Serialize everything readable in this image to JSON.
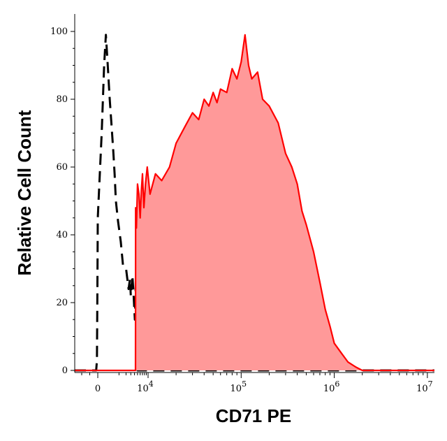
{
  "chart_data": {
    "type": "area",
    "title": "",
    "xlabel": "CD71 PE",
    "ylabel": "Relative Cell Count",
    "x_scale": "biexponential",
    "xlim": [
      -3000,
      15000000
    ],
    "ylim": [
      0,
      100
    ],
    "y_ticks": [
      0,
      20,
      40,
      60,
      80,
      100
    ],
    "y_tick_labels": [
      "0",
      "20",
      "40",
      "60",
      "80",
      "100"
    ],
    "x_ticks": [
      {
        "value": 0,
        "label": "0",
        "exp": ""
      },
      {
        "value": 10000,
        "label": "10",
        "exp": "4"
      },
      {
        "value": 100000,
        "label": "10",
        "exp": "5"
      },
      {
        "value": 1000000,
        "label": "10",
        "exp": "6"
      },
      {
        "value": 10000000,
        "label": "10",
        "exp": "7"
      }
    ],
    "grid": false,
    "legend": "none",
    "series": [
      {
        "style": "dashed",
        "color": "#000000",
        "fill": "none",
        "points": [
          [
            -3000,
            0
          ],
          [
            -200,
            0
          ],
          [
            -100,
            3
          ],
          [
            -50,
            22
          ],
          [
            0,
            45
          ],
          [
            50,
            70
          ],
          [
            100,
            90
          ],
          [
            150,
            99
          ],
          [
            200,
            92
          ],
          [
            300,
            80
          ],
          [
            400,
            72
          ],
          [
            500,
            65
          ],
          [
            600,
            58
          ],
          [
            700,
            50
          ],
          [
            900,
            44
          ],
          [
            1200,
            38
          ],
          [
            1500,
            31
          ],
          [
            2000,
            30
          ],
          [
            2500,
            24
          ],
          [
            2800,
            27
          ],
          [
            3000,
            22
          ],
          [
            3400,
            28
          ],
          [
            3800,
            21
          ],
          [
            4100,
            15
          ],
          [
            4500,
            30
          ],
          [
            4700,
            10
          ],
          [
            4800,
            6
          ],
          [
            5000,
            0
          ],
          [
            15000000,
            0
          ]
        ]
      },
      {
        "style": "solid",
        "color": "#ff0000",
        "fill": "#ff9999",
        "points": [
          [
            -3000,
            0
          ],
          [
            4300,
            0
          ],
          [
            4350,
            48
          ],
          [
            4600,
            42
          ],
          [
            5000,
            55
          ],
          [
            5500,
            52
          ],
          [
            6000,
            45
          ],
          [
            6500,
            53
          ],
          [
            7000,
            58
          ],
          [
            7700,
            48
          ],
          [
            8500,
            55
          ],
          [
            9500,
            60
          ],
          [
            10500,
            52
          ],
          [
            12000,
            58
          ],
          [
            14000,
            56
          ],
          [
            17000,
            60
          ],
          [
            20000,
            67
          ],
          [
            25000,
            72
          ],
          [
            30000,
            76
          ],
          [
            35000,
            74
          ],
          [
            40000,
            80
          ],
          [
            45000,
            78
          ],
          [
            50000,
            82
          ],
          [
            55000,
            79
          ],
          [
            60000,
            83
          ],
          [
            70000,
            82
          ],
          [
            80000,
            89
          ],
          [
            90000,
            86
          ],
          [
            100000,
            91
          ],
          [
            110000,
            99
          ],
          [
            120000,
            90
          ],
          [
            130000,
            86
          ],
          [
            150000,
            88
          ],
          [
            170000,
            80
          ],
          [
            200000,
            78
          ],
          [
            250000,
            73
          ],
          [
            300000,
            64
          ],
          [
            350000,
            60
          ],
          [
            400000,
            55
          ],
          [
            450000,
            47
          ],
          [
            500000,
            43
          ],
          [
            600000,
            35
          ],
          [
            700000,
            26
          ],
          [
            800000,
            18
          ],
          [
            900000,
            13
          ],
          [
            1000000,
            8
          ],
          [
            1200000,
            5
          ],
          [
            1400000,
            2.5
          ],
          [
            1700000,
            1
          ],
          [
            2000000,
            0
          ],
          [
            15000000,
            0
          ]
        ]
      }
    ]
  }
}
